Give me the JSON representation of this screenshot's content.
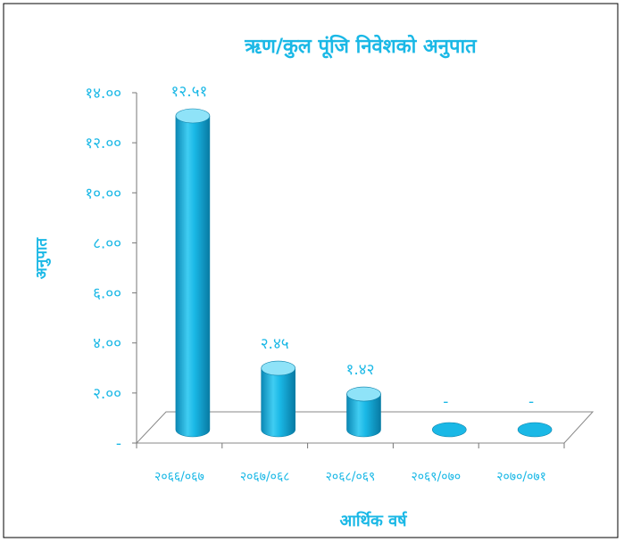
{
  "chart_data": {
    "type": "bar",
    "title": "ऋण/कुल पूंजि निवेशको अनुपात",
    "xlabel": "आर्थिक वर्ष",
    "ylabel": "अनुपात",
    "categories": [
      "२०६६/०६७",
      "२०६७/०६८",
      "२०६८/०६९",
      "२०६९/०७०",
      "२०७०/०७१"
    ],
    "values": [
      12.51,
      2.45,
      1.42,
      null,
      null
    ],
    "value_labels": [
      "१२.५१",
      "२.४५",
      "१.४२",
      "-",
      "-"
    ],
    "ylim": [
      0,
      14
    ],
    "y_ticks": [
      {
        "value": 0,
        "label": "-"
      },
      {
        "value": 2,
        "label": "२.००"
      },
      {
        "value": 4,
        "label": "४.००"
      },
      {
        "value": 6,
        "label": "६.००"
      },
      {
        "value": 8,
        "label": "८.००"
      },
      {
        "value": 10,
        "label": "१०.००"
      },
      {
        "value": 12,
        "label": "१२.००"
      },
      {
        "value": 14,
        "label": "१४.००"
      }
    ],
    "grid": false,
    "legend": "none",
    "colors": {
      "bar": "#1ab8e6",
      "bar_light": "#8fe3f8",
      "bar_dark": "#0b88b5",
      "text": "#1ab8e6",
      "frame": "#000000"
    }
  }
}
